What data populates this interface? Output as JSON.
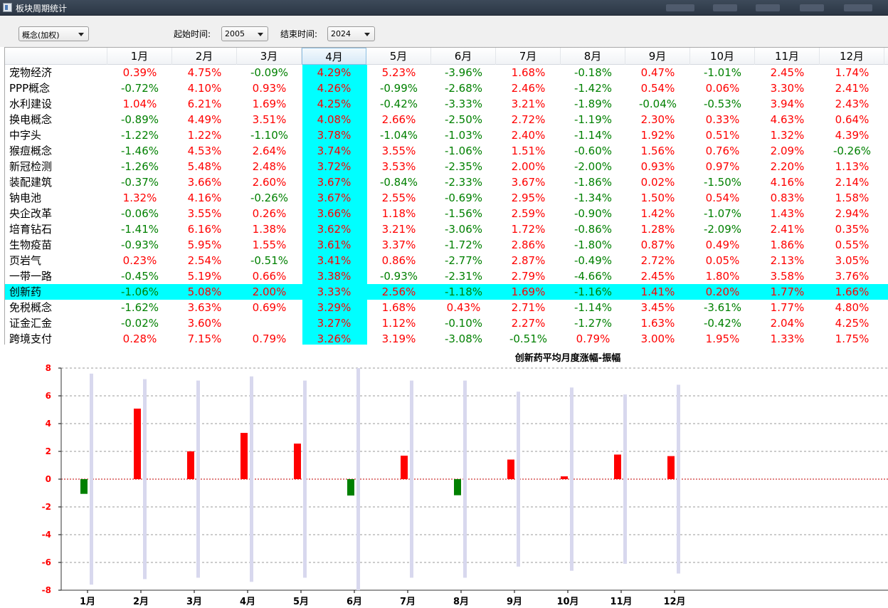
{
  "window": {
    "title": "板块周期统计"
  },
  "toolbar": {
    "category": "概念(加权)",
    "start_label": "起始时间:",
    "start_value": "2005",
    "end_label": "结束时间:",
    "end_value": "2024"
  },
  "table": {
    "columns": [
      "1月",
      "2月",
      "3月",
      "4月",
      "5月",
      "6月",
      "7月",
      "8月",
      "9月",
      "10月",
      "11月",
      "12月"
    ],
    "selected_column": 3,
    "selected_row": 14,
    "rows": [
      {
        "name": "宠物经济",
        "values": [
          "0.39%",
          "4.75%",
          "-0.09%",
          "4.29%",
          "5.23%",
          "-3.96%",
          "1.68%",
          "-0.18%",
          "0.47%",
          "-1.01%",
          "2.45%",
          "1.74%"
        ]
      },
      {
        "name": "PPP概念",
        "values": [
          "-0.72%",
          "4.10%",
          "0.93%",
          "4.26%",
          "-0.99%",
          "-2.68%",
          "2.46%",
          "-1.42%",
          "0.54%",
          "0.06%",
          "3.30%",
          "2.41%"
        ]
      },
      {
        "name": "水利建设",
        "values": [
          "1.04%",
          "6.21%",
          "1.69%",
          "4.25%",
          "-0.42%",
          "-3.33%",
          "3.21%",
          "-1.89%",
          "-0.04%",
          "-0.53%",
          "3.94%",
          "2.43%"
        ]
      },
      {
        "name": "换电概念",
        "values": [
          "-0.89%",
          "4.49%",
          "3.51%",
          "4.08%",
          "2.66%",
          "-2.50%",
          "2.72%",
          "-1.19%",
          "2.30%",
          "0.33%",
          "4.63%",
          "0.64%"
        ]
      },
      {
        "name": "中字头",
        "values": [
          "-1.22%",
          "1.22%",
          "-1.10%",
          "3.78%",
          "-1.04%",
          "-1.03%",
          "2.40%",
          "-1.14%",
          "1.92%",
          "0.51%",
          "1.32%",
          "4.39%"
        ]
      },
      {
        "name": "猴痘概念",
        "values": [
          "-1.46%",
          "4.53%",
          "2.64%",
          "3.74%",
          "3.55%",
          "-1.06%",
          "1.51%",
          "-0.60%",
          "1.56%",
          "0.76%",
          "2.09%",
          "-0.26%"
        ]
      },
      {
        "name": "新冠检测",
        "values": [
          "-1.26%",
          "5.48%",
          "2.48%",
          "3.72%",
          "3.53%",
          "-2.35%",
          "2.00%",
          "-2.00%",
          "0.93%",
          "0.97%",
          "2.20%",
          "1.13%"
        ]
      },
      {
        "name": "装配建筑",
        "values": [
          "-0.37%",
          "3.66%",
          "2.60%",
          "3.67%",
          "-0.84%",
          "-2.33%",
          "3.67%",
          "-1.86%",
          "0.02%",
          "-1.50%",
          "4.16%",
          "2.14%"
        ]
      },
      {
        "name": "钠电池",
        "values": [
          "1.32%",
          "4.16%",
          "-0.26%",
          "3.67%",
          "2.55%",
          "-0.69%",
          "2.95%",
          "-1.34%",
          "1.50%",
          "0.54%",
          "0.83%",
          "1.58%"
        ]
      },
      {
        "name": "央企改革",
        "values": [
          "-0.06%",
          "3.55%",
          "0.26%",
          "3.66%",
          "1.18%",
          "-1.56%",
          "2.59%",
          "-0.90%",
          "1.42%",
          "-1.07%",
          "1.43%",
          "2.94%"
        ]
      },
      {
        "name": "培育钻石",
        "values": [
          "-1.41%",
          "6.16%",
          "1.38%",
          "3.62%",
          "3.21%",
          "-3.06%",
          "1.72%",
          "-0.86%",
          "1.28%",
          "-2.09%",
          "2.41%",
          "0.35%"
        ]
      },
      {
        "name": "生物疫苗",
        "values": [
          "-0.93%",
          "5.95%",
          "1.55%",
          "3.61%",
          "3.37%",
          "-1.72%",
          "2.86%",
          "-1.80%",
          "0.87%",
          "0.49%",
          "1.86%",
          "0.55%"
        ]
      },
      {
        "name": "页岩气",
        "values": [
          "0.23%",
          "2.54%",
          "-0.51%",
          "3.41%",
          "0.86%",
          "-2.77%",
          "2.87%",
          "-0.49%",
          "2.72%",
          "0.05%",
          "2.13%",
          "3.05%"
        ]
      },
      {
        "name": "一带一路",
        "values": [
          "-0.45%",
          "5.19%",
          "0.66%",
          "3.38%",
          "-0.93%",
          "-2.31%",
          "2.79%",
          "-4.66%",
          "2.45%",
          "1.80%",
          "3.58%",
          "3.76%"
        ]
      },
      {
        "name": "创新药",
        "values": [
          "-1.06%",
          "5.08%",
          "2.00%",
          "3.33%",
          "2.56%",
          "-1.18%",
          "1.69%",
          "-1.16%",
          "1.41%",
          "0.20%",
          "1.77%",
          "1.66%"
        ]
      },
      {
        "name": "免税概念",
        "values": [
          "-1.62%",
          "3.63%",
          "0.69%",
          "3.29%",
          "1.68%",
          "0.43%",
          "2.71%",
          "-1.14%",
          "3.45%",
          "-3.61%",
          "1.77%",
          "4.80%"
        ]
      },
      {
        "name": "证金汇金",
        "values": [
          "-0.02%",
          "3.60%",
          "",
          "3.27%",
          "1.12%",
          "-0.10%",
          "2.27%",
          "-1.27%",
          "1.63%",
          "-0.42%",
          "2.04%",
          "4.25%"
        ]
      },
      {
        "name": "跨境支付",
        "values": [
          "0.28%",
          "7.15%",
          "0.79%",
          "3.26%",
          "3.19%",
          "-3.08%",
          "-0.51%",
          "0.79%",
          "3.00%",
          "1.95%",
          "1.33%",
          "1.75%"
        ]
      }
    ]
  },
  "colors": {
    "up": "#ff0000",
    "down": "#008000",
    "highlight": "#00ffff",
    "amplitude": "#d8d8ee"
  },
  "chart_data": {
    "type": "bar",
    "title": "创新药平均月度涨幅-振幅",
    "categories": [
      "1月",
      "2月",
      "3月",
      "4月",
      "5月",
      "6月",
      "7月",
      "8月",
      "9月",
      "10月",
      "11月",
      "12月"
    ],
    "ylim": [
      -8,
      8
    ],
    "yticks": [
      "8",
      "6",
      "4",
      "2",
      "0",
      "-2",
      "-4",
      "-6",
      "-8"
    ],
    "grid": true,
    "series": [
      {
        "values": [
          -1.06,
          5.08,
          2.0,
          3.33,
          2.56,
          -1.18,
          1.69,
          -1.16,
          1.41,
          0.2,
          1.77,
          1.66
        ]
      },
      {
        "values": [
          7.6,
          7.2,
          7.1,
          7.4,
          7.1,
          8.0,
          7.1,
          7.1,
          6.3,
          6.6,
          6.1,
          6.8
        ],
        "lower": [
          -7.6,
          -7.2,
          -7.1,
          -7.4,
          -7.1,
          -8.0,
          -7.1,
          -7.1,
          -6.3,
          -6.6,
          -6.1,
          -6.8
        ]
      }
    ]
  }
}
